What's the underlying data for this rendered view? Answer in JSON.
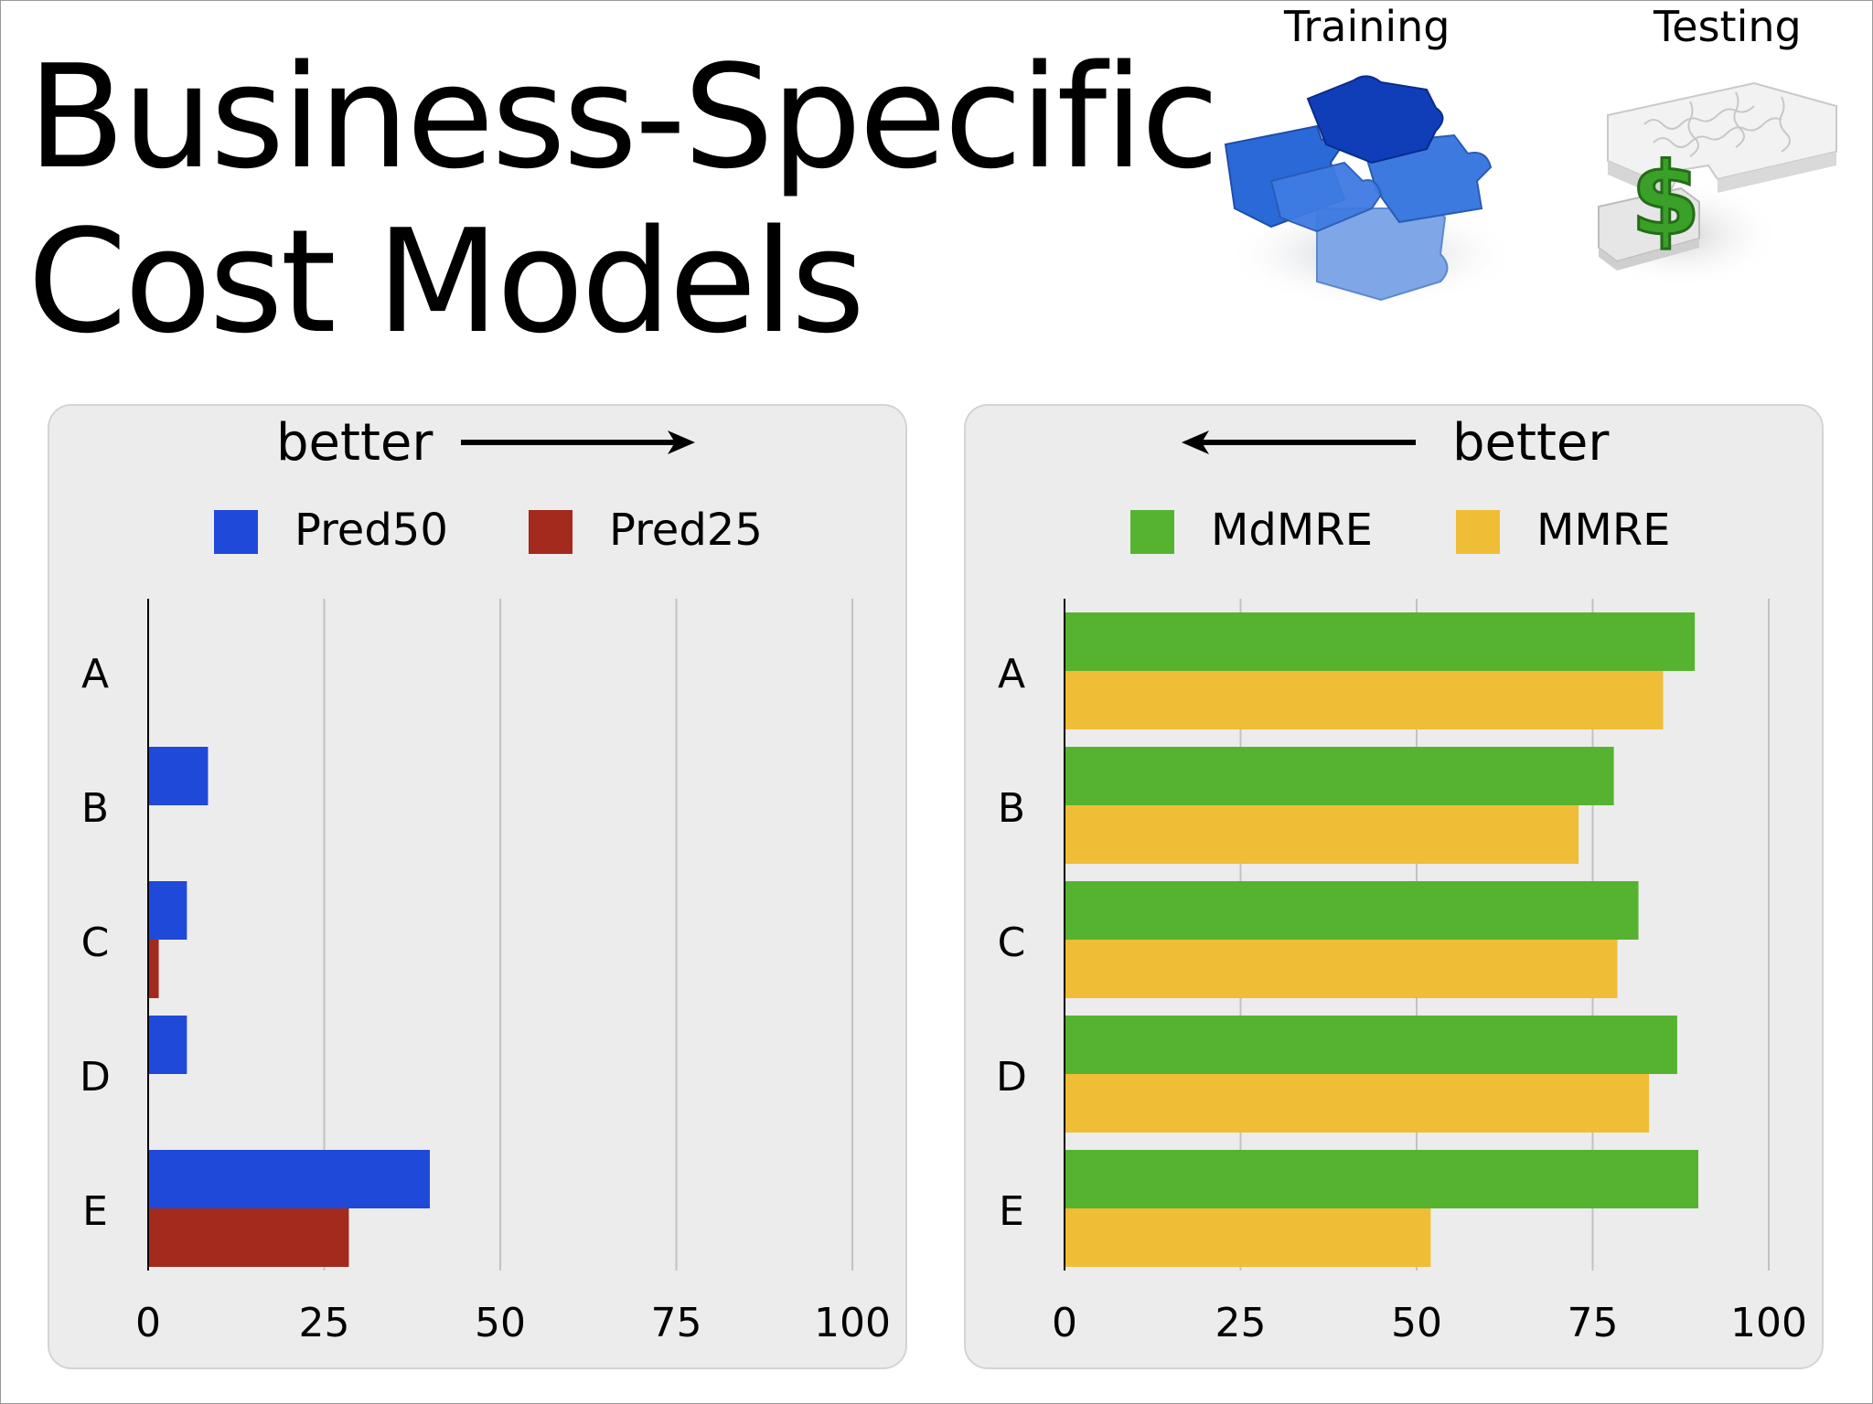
{
  "title": {
    "line1": "Business-Specific",
    "line2": "Cost Models"
  },
  "icons": {
    "training": {
      "label": "Training",
      "icon": "blue-puzzle-icon"
    },
    "testing": {
      "label": "Testing",
      "icon": "dollar-puzzle-icon"
    }
  },
  "colors": {
    "pred50": "#1f49d9",
    "pred25": "#a32a1c",
    "mdmre": "#56b330",
    "mmre": "#f0bd36",
    "panel": "#ececec",
    "grid": "#c2c2c2"
  },
  "left_panel": {
    "better": "better",
    "arrow_direction": "right"
  },
  "right_panel": {
    "better": "better",
    "arrow_direction": "left"
  },
  "chart_data": [
    {
      "type": "bar",
      "orientation": "horizontal",
      "categories": [
        "A",
        "B",
        "C",
        "D",
        "E"
      ],
      "series": [
        {
          "name": "Pred50",
          "values": [
            0,
            8.5,
            5.5,
            5.5,
            40
          ]
        },
        {
          "name": "Pred25",
          "values": [
            0,
            0,
            1.5,
            0,
            28.5
          ]
        }
      ],
      "xlim": [
        0,
        100
      ],
      "xticks": [
        "0",
        "25",
        "50",
        "75",
        "100"
      ],
      "grid": true,
      "legend": "top",
      "annotation": "better →"
    },
    {
      "type": "bar",
      "orientation": "horizontal",
      "categories": [
        "A",
        "B",
        "C",
        "D",
        "E"
      ],
      "series": [
        {
          "name": "MdMRE",
          "values": [
            89.5,
            78,
            81.5,
            87,
            90
          ]
        },
        {
          "name": "MMRE",
          "values": [
            85,
            73,
            78.5,
            83,
            52
          ]
        }
      ],
      "xlim": [
        0,
        100
      ],
      "xticks": [
        "0",
        "25",
        "50",
        "75",
        "100"
      ],
      "grid": true,
      "legend": "top",
      "annotation": "← better"
    }
  ]
}
